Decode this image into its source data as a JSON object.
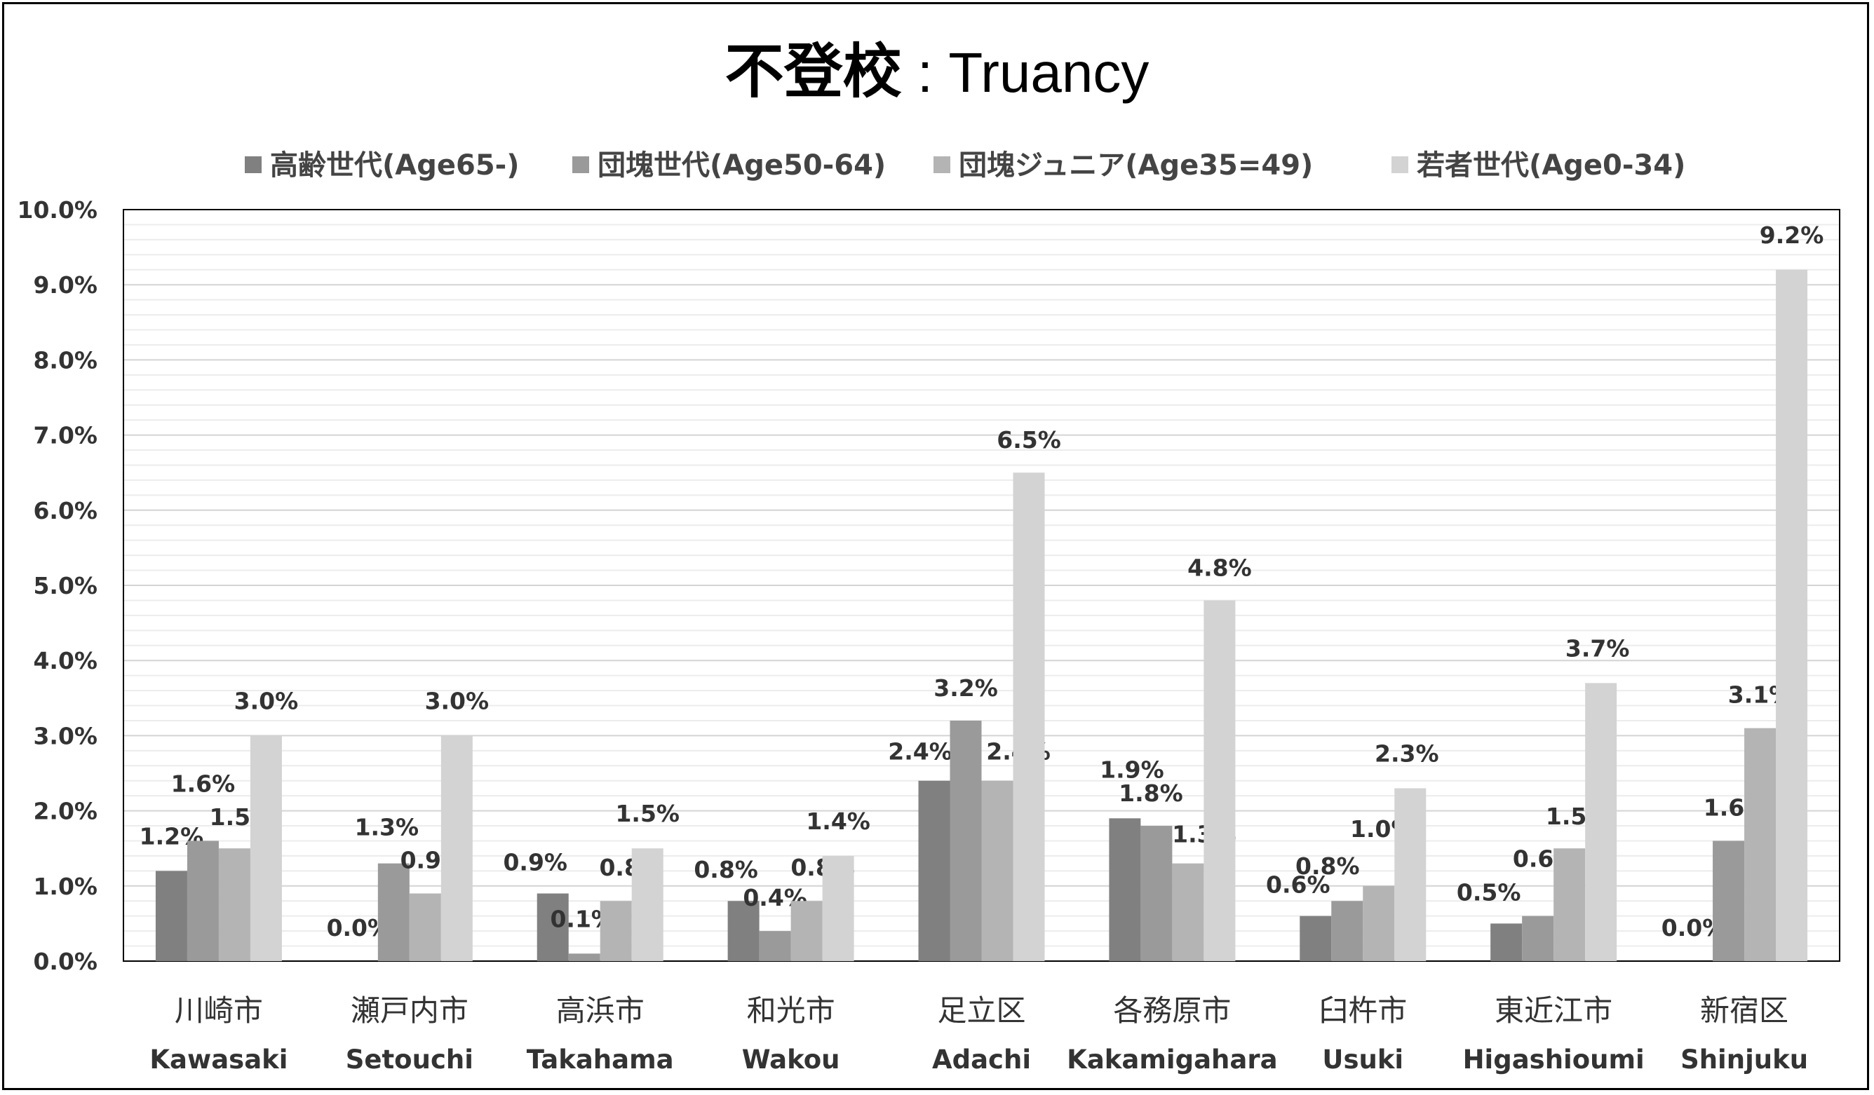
{
  "chart_data": {
    "type": "bar",
    "title": "不登校",
    "title_suffix": " : Truancy",
    "ylim": [
      0,
      10
    ],
    "ytick_labels": [
      "0.0%",
      "1.0%",
      "2.0%",
      "3.0%",
      "4.0%",
      "5.0%",
      "6.0%",
      "7.0%",
      "8.0%",
      "9.0%",
      "10.0%"
    ],
    "grid": true,
    "legend_position": "top",
    "categories": [
      {
        "jp": "川崎市",
        "en": "Kawasaki"
      },
      {
        "jp": "瀬戸内市",
        "en": "Setouchi"
      },
      {
        "jp": "高浜市",
        "en": "Takahama"
      },
      {
        "jp": "和光市",
        "en": "Wakou"
      },
      {
        "jp": "足立区",
        "en": "Adachi"
      },
      {
        "jp": "各務原市",
        "en": "Kakamigahara"
      },
      {
        "jp": "臼杵市",
        "en": "Usuki"
      },
      {
        "jp": "東近江市",
        "en": "Higashioumi"
      },
      {
        "jp": "新宿区",
        "en": "Shinjuku"
      }
    ],
    "series": [
      {
        "name": "高齢世代(Age65-)",
        "color": "#808080",
        "values": [
          1.2,
          0.0,
          0.9,
          0.8,
          2.4,
          1.9,
          0.6,
          0.5,
          0.0
        ],
        "labels": [
          "1.2%",
          "0.0%",
          "0.9%",
          "0.8%",
          "2.4%",
          "1.9%",
          "0.6%",
          "0.5%",
          "0.0%"
        ]
      },
      {
        "name": "団塊世代(Age50-64)",
        "color": "#9a9a9a",
        "values": [
          1.6,
          1.3,
          0.1,
          0.4,
          3.2,
          1.8,
          0.8,
          0.6,
          1.6
        ],
        "labels": [
          "1.6%",
          "1.3%",
          "0.1%",
          "0.4%",
          "3.2%",
          "1.8%",
          "0.8%",
          "0.6%",
          "1.6%"
        ]
      },
      {
        "name": "団塊ジュニア(Age35=49)",
        "color": "#b4b4b4",
        "values": [
          1.5,
          0.9,
          0.8,
          0.8,
          2.4,
          1.3,
          1.0,
          1.5,
          3.1
        ],
        "labels": [
          "1.5%",
          "0.9%",
          "0.8%",
          "0.8%",
          "2.4%",
          "1.3%",
          "1.0%",
          "1.5%",
          "3.1%"
        ]
      },
      {
        "name": "若者世代(Age0-34)",
        "color": "#d3d3d3",
        "values": [
          3.0,
          3.0,
          1.5,
          1.4,
          6.5,
          4.8,
          2.3,
          3.7,
          9.2
        ],
        "labels": [
          "3.0%",
          "3.0%",
          "1.5%",
          "1.4%",
          "6.5%",
          "4.8%",
          "2.3%",
          "3.7%",
          "9.2%"
        ]
      }
    ]
  }
}
